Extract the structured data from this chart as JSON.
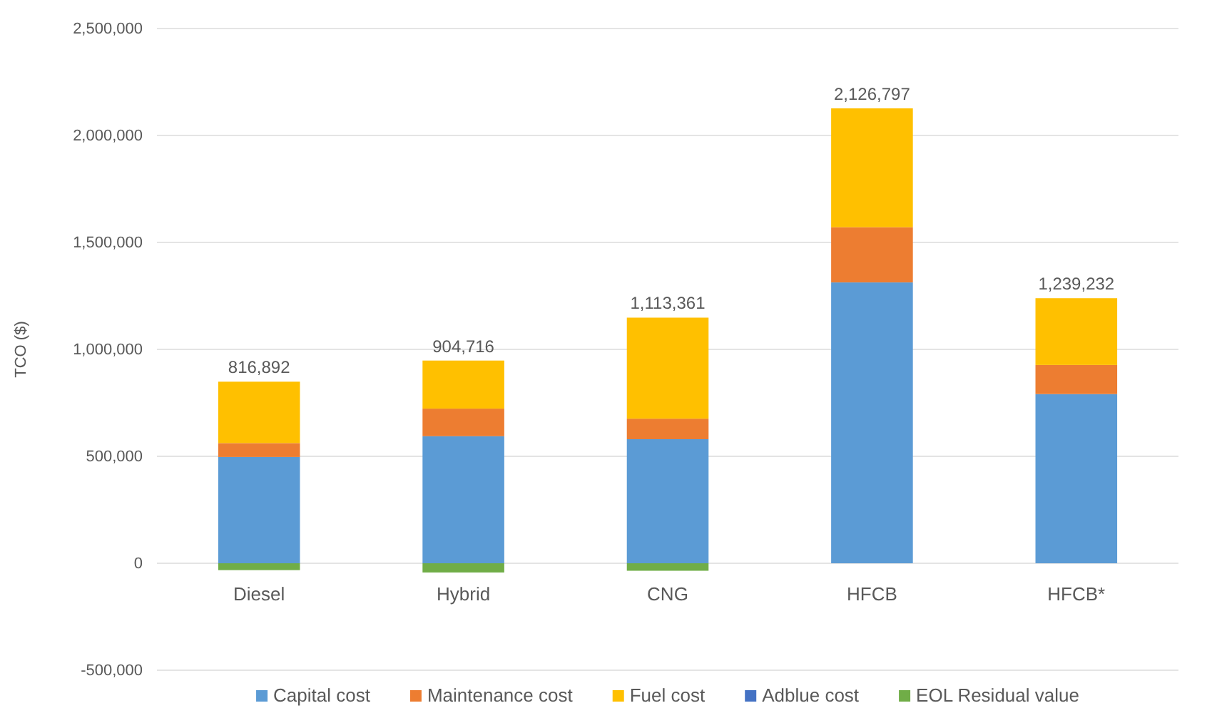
{
  "chart_data": {
    "type": "bar",
    "stacked": true,
    "ylabel": "TCO ($)",
    "categories": [
      "Diesel",
      "Hybrid",
      "CNG",
      "HFCB",
      "HFCB*"
    ],
    "series": [
      {
        "name": "Capital cost",
        "color": "#5b9bd5",
        "values": [
          497000,
          594000,
          580000,
          1313000,
          791000
        ]
      },
      {
        "name": "Maintenance cost",
        "color": "#ed7d31",
        "values": [
          65000,
          129000,
          96000,
          258000,
          136000
        ]
      },
      {
        "name": "Fuel cost",
        "color": "#ffc000",
        "values": [
          286892,
          224716,
          472361,
          555797,
          312232
        ]
      },
      {
        "name": "Adblue cost",
        "color": "#4472c4",
        "values": [
          0,
          0,
          0,
          0,
          0
        ]
      },
      {
        "name": "EOL Residual value",
        "color": "#70ad47",
        "values": [
          -32000,
          -43000,
          -35000,
          0,
          0
        ]
      }
    ],
    "totals": [
      "816,892",
      "904,716",
      "1,113,361",
      "2,126,797",
      "1,239,232"
    ],
    "ylim": [
      -500000,
      2500000
    ],
    "yticks": [
      {
        "value": -500000,
        "label": "-500,000"
      },
      {
        "value": 0,
        "label": "0"
      },
      {
        "value": 500000,
        "label": "500,000"
      },
      {
        "value": 1000000,
        "label": "1,000,000"
      },
      {
        "value": 1500000,
        "label": "1,500,000"
      },
      {
        "value": 2000000,
        "label": "2,000,000"
      },
      {
        "value": 2500000,
        "label": "2,500,000"
      }
    ],
    "grid": "y",
    "legend": "bottom"
  }
}
